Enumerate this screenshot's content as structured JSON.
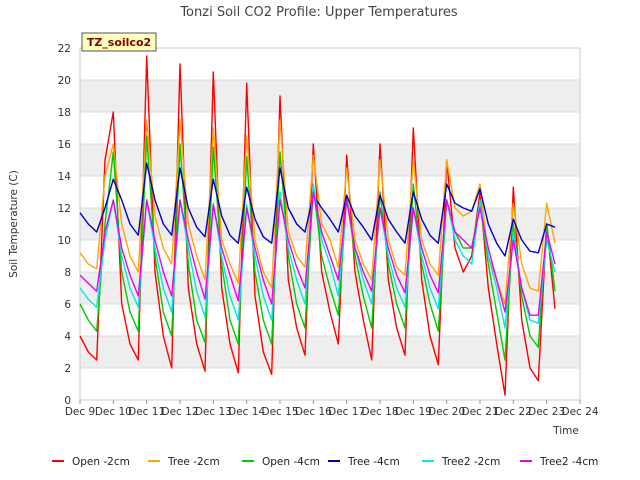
{
  "chart_data": {
    "type": "line",
    "title": "Tonzi Soil CO2 Profile: Upper Temperatures",
    "xlabel": "Time",
    "ylabel": "Soil Temperature (C)",
    "tag": "TZ_soilco2",
    "ylim": [
      0,
      22
    ],
    "yticks": [
      0,
      2,
      4,
      6,
      8,
      10,
      12,
      14,
      16,
      18,
      20,
      22
    ],
    "xlim": [
      9,
      24
    ],
    "xtick_values": [
      9,
      10,
      11,
      12,
      13,
      14,
      15,
      16,
      17,
      18,
      19,
      20,
      21,
      22,
      23,
      24
    ],
    "xtick_labels": [
      "Dec 9",
      "Dec 10",
      "Dec 11",
      "Dec 12",
      "Dec 13",
      "Dec 14",
      "Dec 15",
      "Dec 16",
      "Dec 17",
      "Dec 18",
      "Dec 19",
      "Dec 20",
      "Dec 21",
      "Dec 22",
      "Dec 23",
      "Dec 24"
    ],
    "grid": "horizontal bands",
    "legend_position": "bottom",
    "x": [
      9.0,
      9.25,
      9.5,
      9.75,
      10.0,
      10.25,
      10.5,
      10.75,
      11.0,
      11.25,
      11.5,
      11.75,
      12.0,
      12.25,
      12.5,
      12.75,
      13.0,
      13.25,
      13.5,
      13.75,
      14.0,
      14.25,
      14.5,
      14.75,
      15.0,
      15.25,
      15.5,
      15.75,
      16.0,
      16.25,
      16.5,
      16.75,
      17.0,
      17.25,
      17.5,
      17.75,
      18.0,
      18.25,
      18.5,
      18.75,
      19.0,
      19.25,
      19.5,
      19.75,
      20.0,
      20.25,
      20.5,
      20.75,
      21.0,
      21.25,
      21.5,
      21.75,
      22.0,
      22.25,
      22.5,
      22.75,
      23.0,
      23.25
    ],
    "series": [
      {
        "name": "Open -2cm",
        "color": "#ff0000",
        "values": [
          4.0,
          3.0,
          2.5,
          15.0,
          18.0,
          6.0,
          3.5,
          2.5,
          21.5,
          8.0,
          4.0,
          2.0,
          21.0,
          7.0,
          3.5,
          1.8,
          20.5,
          7.0,
          3.5,
          1.7,
          19.8,
          6.5,
          3.0,
          1.6,
          19.0,
          7.5,
          4.5,
          2.8,
          16.0,
          8.0,
          5.5,
          3.5,
          15.3,
          8.0,
          5.0,
          2.5,
          16.0,
          7.5,
          4.5,
          2.8,
          17.0,
          7.5,
          4.0,
          2.2,
          15.0,
          9.5,
          8.0,
          9.0,
          13.0,
          7.0,
          3.5,
          0.3,
          13.3,
          5.0,
          2.0,
          1.2,
          11.0,
          5.7
        ]
      },
      {
        "name": "Tree -2cm",
        "color": "#ffa500",
        "values": [
          9.2,
          8.5,
          8.2,
          14.0,
          16.0,
          11.0,
          9.0,
          8.0,
          17.5,
          11.5,
          9.5,
          8.5,
          17.5,
          11.0,
          9.0,
          7.5,
          17.0,
          10.0,
          8.5,
          7.3,
          16.5,
          10.0,
          8.0,
          7.0,
          17.5,
          10.5,
          9.0,
          8.3,
          15.3,
          11.0,
          10.0,
          8.3,
          14.5,
          10.0,
          8.5,
          7.5,
          15.0,
          10.0,
          8.3,
          7.8,
          15.0,
          10.0,
          8.5,
          7.8,
          15.0,
          12.0,
          11.5,
          11.8,
          13.5,
          9.0,
          7.5,
          6.0,
          12.3,
          8.5,
          7.0,
          6.8,
          12.3,
          9.8
        ]
      },
      {
        "name": "Open -4cm",
        "color": "#00cc00",
        "values": [
          6.0,
          5.0,
          4.3,
          11.0,
          15.5,
          8.0,
          5.5,
          4.3,
          16.5,
          9.0,
          5.5,
          4.0,
          16.0,
          8.5,
          5.0,
          3.6,
          15.8,
          8.5,
          5.0,
          3.5,
          15.2,
          8.0,
          5.0,
          3.5,
          15.5,
          9.0,
          6.0,
          4.5,
          13.3,
          9.0,
          7.0,
          5.3,
          12.8,
          9.0,
          6.5,
          4.5,
          13.0,
          8.5,
          6.0,
          4.5,
          13.5,
          8.5,
          6.0,
          4.3,
          12.5,
          10.5,
          9.5,
          9.5,
          12.3,
          8.5,
          5.5,
          2.5,
          11.0,
          6.5,
          4.0,
          3.3,
          11.0,
          6.8
        ]
      },
      {
        "name": "Tree -4cm",
        "color": "#0000cc",
        "values": [
          11.7,
          11.0,
          10.5,
          12.0,
          13.8,
          12.5,
          11.0,
          10.3,
          14.8,
          12.5,
          11.0,
          10.3,
          14.5,
          12.0,
          10.8,
          10.2,
          13.8,
          11.5,
          10.3,
          9.8,
          13.3,
          11.3,
          10.2,
          9.8,
          14.5,
          12.0,
          11.0,
          10.5,
          12.8,
          12.0,
          11.3,
          10.5,
          12.8,
          11.5,
          10.8,
          10.0,
          12.8,
          11.3,
          10.5,
          9.8,
          13.0,
          11.3,
          10.3,
          9.8,
          13.5,
          12.3,
          12.0,
          11.8,
          13.2,
          11.0,
          9.8,
          9.0,
          11.3,
          10.0,
          9.3,
          9.2,
          11.0,
          10.8
        ]
      },
      {
        "name": "Tree2 -2cm",
        "color": "#00e5ee",
        "values": [
          7.0,
          6.3,
          5.8,
          10.0,
          12.5,
          9.0,
          7.0,
          5.8,
          12.5,
          9.5,
          7.0,
          5.5,
          12.5,
          9.5,
          6.8,
          5.2,
          12.3,
          9.0,
          6.5,
          5.0,
          12.2,
          9.0,
          6.5,
          5.0,
          13.0,
          9.5,
          7.5,
          6.0,
          13.5,
          10.0,
          8.5,
          6.5,
          12.5,
          9.5,
          7.5,
          6.0,
          12.0,
          9.0,
          7.0,
          5.8,
          12.0,
          9.0,
          7.0,
          5.7,
          12.5,
          10.0,
          9.0,
          8.5,
          12.5,
          9.0,
          7.0,
          4.5,
          10.5,
          7.0,
          5.0,
          4.8,
          10.0,
          8.0
        ]
      },
      {
        "name": "Tree2 -4cm",
        "color": "#ee00ee",
        "values": [
          7.8,
          7.3,
          6.8,
          10.5,
          12.5,
          9.5,
          7.8,
          6.5,
          12.5,
          10.0,
          8.0,
          6.5,
          12.5,
          10.0,
          8.0,
          6.3,
          12.2,
          9.5,
          7.8,
          6.2,
          12.0,
          9.5,
          7.5,
          6.0,
          12.5,
          10.0,
          8.3,
          7.0,
          13.0,
          10.5,
          9.0,
          7.5,
          12.5,
          9.5,
          8.0,
          6.8,
          12.0,
          9.5,
          7.8,
          6.7,
          12.0,
          9.5,
          7.8,
          6.7,
          12.5,
          10.5,
          10.0,
          9.5,
          12.0,
          9.5,
          7.5,
          5.5,
          10.0,
          7.0,
          5.3,
          5.3,
          10.5,
          8.5
        ]
      }
    ]
  }
}
